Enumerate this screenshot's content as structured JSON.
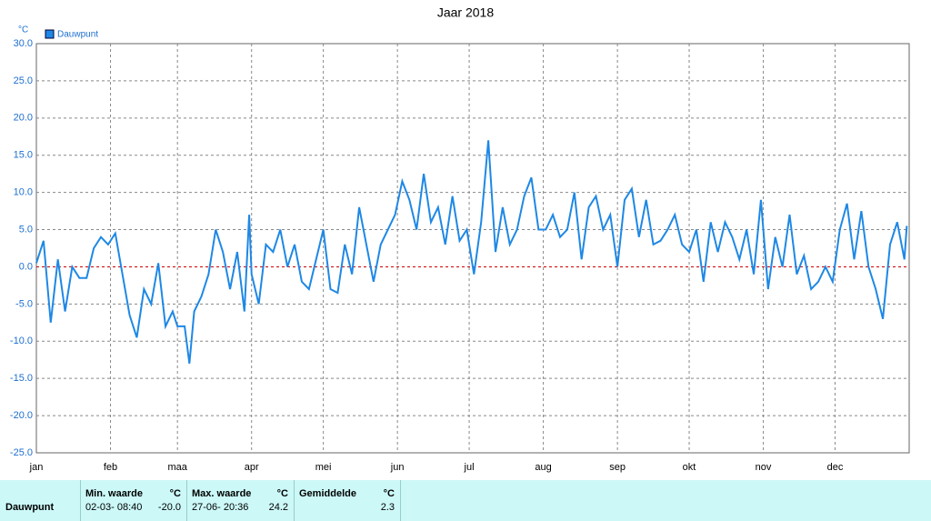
{
  "chart_data": {
    "type": "line",
    "title": "Jaar 2018",
    "y_unit": "°C",
    "x": [
      0,
      3,
      6,
      9,
      12,
      15,
      18,
      21,
      24,
      27,
      30,
      33,
      36,
      39,
      42,
      45,
      48,
      51,
      54,
      57,
      59,
      62,
      64,
      66,
      69,
      72,
      75,
      78,
      81,
      84,
      87,
      89,
      90,
      93,
      96,
      99,
      102,
      105,
      108,
      111,
      114,
      117,
      120,
      123,
      126,
      129,
      132,
      135,
      138,
      141,
      144,
      147,
      150,
      153,
      156,
      159,
      162,
      165,
      168,
      171,
      174,
      177,
      180,
      183,
      186,
      189,
      192,
      195,
      198,
      201,
      204,
      207,
      210,
      213,
      216,
      219,
      222,
      225,
      228,
      231,
      234,
      237,
      240,
      243,
      246,
      249,
      252,
      255,
      258,
      261,
      264,
      267,
      270,
      273,
      276,
      279,
      282,
      285,
      288,
      291,
      294,
      297,
      300,
      303,
      306,
      309,
      312,
      315,
      318,
      321,
      324,
      327,
      330,
      333,
      336,
      339,
      342,
      345,
      348,
      351,
      354,
      357,
      360,
      363,
      364
    ],
    "series": [
      {
        "name": "Dauwpunt",
        "color": "#1e88e5",
        "values": [
          0.5,
          3.5,
          -7.5,
          1,
          -6,
          0,
          -1.5,
          -1.5,
          2.5,
          4,
          3,
          4.5,
          -1,
          -6.5,
          -9.5,
          -3,
          -5,
          0.5,
          -8,
          -6,
          -8,
          -8,
          -13,
          -6,
          -4,
          -1,
          5,
          2,
          -3,
          2,
          -6,
          7,
          -1,
          -5,
          3,
          2,
          5,
          0,
          3,
          -2,
          -3,
          1,
          5,
          -3,
          -3.5,
          3,
          -1,
          8,
          3,
          -2,
          3,
          5,
          7,
          11.5,
          9,
          5,
          12.5,
          6,
          8,
          3,
          9.5,
          3.5,
          5,
          -1,
          6,
          17,
          2,
          8,
          3,
          5,
          9.5,
          12,
          5,
          5,
          7,
          4,
          5,
          10,
          1,
          8,
          9.5,
          5,
          7,
          0,
          9,
          10.5,
          4,
          9,
          3,
          3.5,
          5,
          7,
          3,
          2,
          5,
          -2,
          6,
          2,
          6,
          4,
          1,
          5,
          -1,
          9,
          -3,
          4,
          0,
          7,
          -1,
          1.5,
          -3,
          -2,
          0,
          -2,
          5,
          8.5,
          1,
          7.5,
          0,
          -3,
          -7,
          3,
          6,
          1,
          5.5
        ]
      }
    ],
    "xlim": [
      0,
      365
    ],
    "xticks": [
      {
        "value": 0,
        "label": "jan"
      },
      {
        "value": 31,
        "label": "feb"
      },
      {
        "value": 59,
        "label": "maa"
      },
      {
        "value": 90,
        "label": "apr"
      },
      {
        "value": 120,
        "label": "mei"
      },
      {
        "value": 151,
        "label": "jun"
      },
      {
        "value": 181,
        "label": "jul"
      },
      {
        "value": 212,
        "label": "aug"
      },
      {
        "value": 243,
        "label": "sep"
      },
      {
        "value": 273,
        "label": "okt"
      },
      {
        "value": 304,
        "label": "nov"
      },
      {
        "value": 334,
        "label": "dec"
      }
    ],
    "ylim": [
      -25,
      30
    ],
    "yticks": [
      {
        "value": -25,
        "label": "-25.0"
      },
      {
        "value": -20,
        "label": "-20.0"
      },
      {
        "value": -15,
        "label": "-15.0"
      },
      {
        "value": -10,
        "label": "-10.0"
      },
      {
        "value": -5,
        "label": "-5.0"
      },
      {
        "value": 0,
        "label": "0.0"
      },
      {
        "value": 5,
        "label": "5.0"
      },
      {
        "value": 10,
        "label": "10.0"
      },
      {
        "value": 15,
        "label": "15.0"
      },
      {
        "value": 20,
        "label": "20.0"
      },
      {
        "value": 25,
        "label": "25.0"
      },
      {
        "value": 30,
        "label": "30.0"
      }
    ],
    "grid": true,
    "legend": "top-left"
  },
  "summary": {
    "row": "Dauwpunt",
    "min": {
      "header": "Min. waarde",
      "unit": "°C",
      "time": "02-03- 08:40",
      "value": "-20.0"
    },
    "max": {
      "header": "Max. waarde",
      "unit": "°C",
      "time": "27-06- 20:36",
      "value": "24.2"
    },
    "avg": {
      "header": "Gemiddelde",
      "unit": "°C",
      "value": "2.3"
    }
  }
}
